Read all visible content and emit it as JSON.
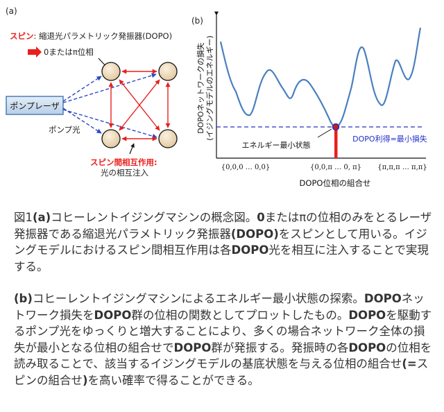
{
  "panel_a": {
    "label": "(a)",
    "spin_label": "スピン",
    "spin_desc": ": 縮退光パラメトリック発振器(DOPO)",
    "phase_label": "0またはπ位相",
    "pump_laser": "ポンプレーザ",
    "pump_light": "ポンプ光",
    "interaction_label": "スピン間相互作用:",
    "interaction_desc": "光の相互注入",
    "colors": {
      "spin_red": "#e8201c",
      "pump_blue": "#2a47c9",
      "box_fill": "#c7dcef",
      "box_border": "#4a7fb5",
      "node_fill": "#f2e2c8"
    }
  },
  "panel_b": {
    "label": "(b)",
    "ylabel_line1": "DOPOネットワークの損失",
    "ylabel_line2": "(イジングモデルのエネルギー)",
    "min_state_label": "エネルギー最小状態",
    "gain_label": "DOPO利得=最小損失",
    "tick_left": "{0,0,0 … 0,0}",
    "tick_mid": "{0,0,π … 0, π}",
    "tick_right": "{π,π,π … π,π}",
    "xlabel": "DOPO位相の組合せ",
    "colors": {
      "curve": "#4a7fbf",
      "dashed": "#2230c8",
      "gain_bar": "#e8201c",
      "point": "#c81c1c"
    }
  },
  "caption": {
    "p1_prefix": "図1",
    "p1_label": "(a)",
    "p1_text_a": "コヒーレントイジングマシンの概念図。",
    "p1_bold_0": "0",
    "p1_text_b": "またはπの位相のみをとるレーザ発振器である縮退光パラメトリック発振器",
    "p1_bold_dopo": "(DOPO)",
    "p1_text_c": "をスピンとして用いる。イジングモデルにおけるスピン間相互作用は各",
    "p1_bold_dopo2": "DOPO",
    "p1_text_d": "光を相互に注入することで実現する。",
    "p2_label": "(b)",
    "p2_text_a": "コヒーレントイジングマシンによるエネルギー最小状態の探索。",
    "p2_bold_1": "DOPO",
    "p2_text_b": "ネットワーク損失を",
    "p2_bold_2": "DOPO",
    "p2_text_c": "群の位相の関数としてプロットしたもの。",
    "p2_bold_3": "DOPO",
    "p2_text_d": "を駆動するポンプ光をゆっくりと増大することにより、多くの場合ネットワーク全体の損失が最小となる位相の組合せで",
    "p2_bold_4": "DOPO",
    "p2_text_e": "群が発振する。発振時の各",
    "p2_bold_5": "DOPO",
    "p2_text_f": "の位相を読み取ることで、該当するイジングモデルの基底状態を与える位相の組合せ",
    "p2_bold_6": "(=",
    "p2_text_g": "スピンの組合せ",
    "p2_bold_7": ")",
    "p2_text_h": "を高い確率で得ることができる。"
  }
}
